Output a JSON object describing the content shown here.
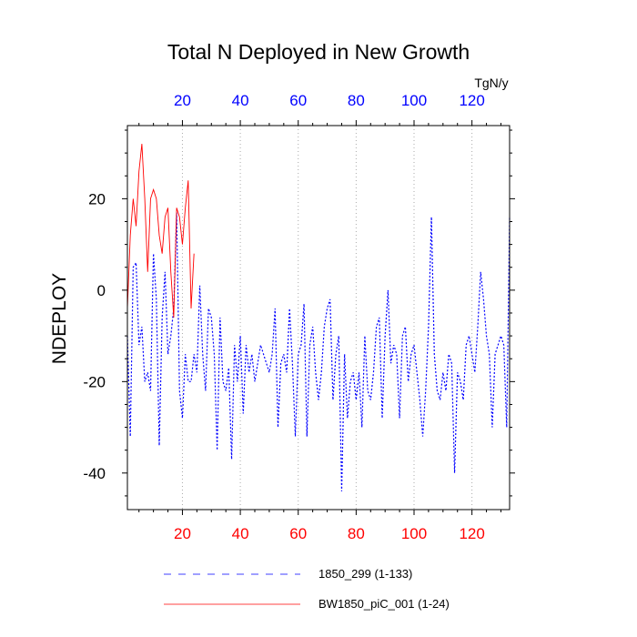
{
  "chart_data": {
    "type": "line",
    "title": "Total N Deployed in New Growth",
    "ylabel": "NDEPLOY",
    "units": "TgN/y",
    "xlim": [
      1,
      133
    ],
    "ylim": [
      -48,
      36
    ],
    "x_ticks": [
      20,
      40,
      60,
      80,
      100,
      120
    ],
    "y_ticks": [
      -40,
      -20,
      0,
      20
    ],
    "bottom_axis_color": "#ff0000",
    "top_axis_color": "#0000ff",
    "grid": "vertical dotted lines at x ticks",
    "legend_position": "bottom",
    "series": [
      {
        "name": "1850_299 (1-133)",
        "color": "#0000ff",
        "dash": "dotted",
        "x_start": 1,
        "values": [
          -10,
          -32,
          5,
          6,
          -12,
          -8,
          -20,
          -18,
          -22,
          8,
          -2,
          -34,
          -6,
          4,
          -14,
          -10,
          -4,
          17,
          -22,
          -28,
          -14,
          -20,
          -20,
          -14,
          -18,
          1,
          -14,
          -22,
          -4,
          -6,
          -14,
          -35,
          -6,
          -20,
          -22,
          -17,
          -37,
          -12,
          -20,
          -10,
          -27,
          -12,
          -18,
          -14,
          -20,
          -16,
          -12,
          -14,
          -16,
          -18,
          -14,
          -4,
          -30,
          -16,
          -14,
          -18,
          -4,
          -16,
          -32,
          -14,
          -12,
          -3,
          -32,
          -12,
          -8,
          -18,
          -24,
          -18,
          -8,
          -4,
          -2,
          -24,
          -14,
          -10,
          -44,
          -14,
          -28,
          -20,
          -18,
          -24,
          -18,
          -30,
          -10,
          -22,
          -24,
          -18,
          -8,
          -6,
          -28,
          -10,
          0,
          -16,
          -12,
          -14,
          -28,
          -10,
          -8,
          -20,
          -14,
          -12,
          -18,
          -24,
          -32,
          -22,
          -8,
          16,
          -14,
          -22,
          -24,
          -18,
          -22,
          -14,
          -16,
          -40,
          -18,
          -20,
          -24,
          -12,
          -10,
          -14,
          -18,
          -8,
          4,
          -2,
          -10,
          -14,
          -30,
          -14,
          -12,
          -10,
          -12,
          -30,
          16
        ]
      },
      {
        "name": "BW1850_piC_001 (1-24)",
        "color": "#ff0000",
        "dash": "solid",
        "x_start": 1,
        "values": [
          -4,
          12,
          20,
          14,
          26,
          32,
          20,
          4,
          20,
          22,
          20,
          12,
          8,
          16,
          18,
          4,
          -6,
          18,
          16,
          10,
          18,
          24,
          -4,
          8
        ]
      }
    ]
  }
}
